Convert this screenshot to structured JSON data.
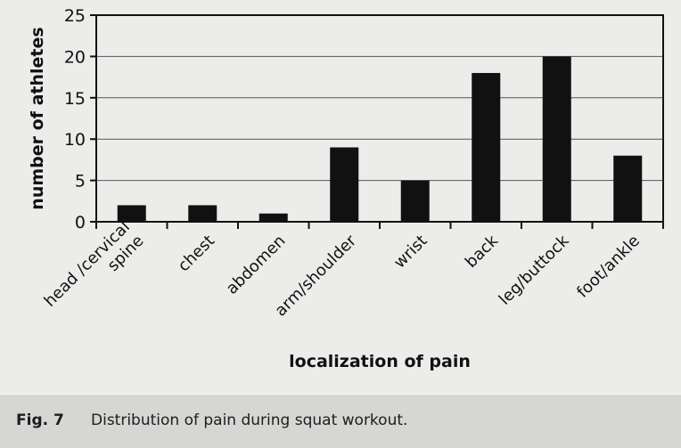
{
  "chart_data": {
    "type": "bar",
    "categories": [
      "head /cervical spine",
      "chest",
      "abdomen",
      "arm/shoulder",
      "wrist",
      "back",
      "leg/buttock",
      "foot/ankle"
    ],
    "category_lines": [
      [
        "head /cervical",
        "spine"
      ],
      [
        "chest"
      ],
      [
        "abdomen"
      ],
      [
        "arm/shoulder"
      ],
      [
        "wrist"
      ],
      [
        "back"
      ],
      [
        "leg/buttock"
      ],
      [
        "foot/ankle"
      ]
    ],
    "values": [
      2,
      2,
      1,
      9,
      5,
      18,
      20,
      8
    ],
    "yticks": [
      "0",
      "5",
      "10",
      "15",
      "20",
      "25"
    ],
    "ylim": [
      0,
      25
    ],
    "xlabel": "localization of pain",
    "ylabel": "number of athletes",
    "grid": true,
    "colors": {
      "bar": "#111111",
      "grid": "#555555",
      "background": "#ececea"
    }
  },
  "caption": {
    "label": "Fig. 7",
    "text": "Distribution of pain during squat workout."
  }
}
